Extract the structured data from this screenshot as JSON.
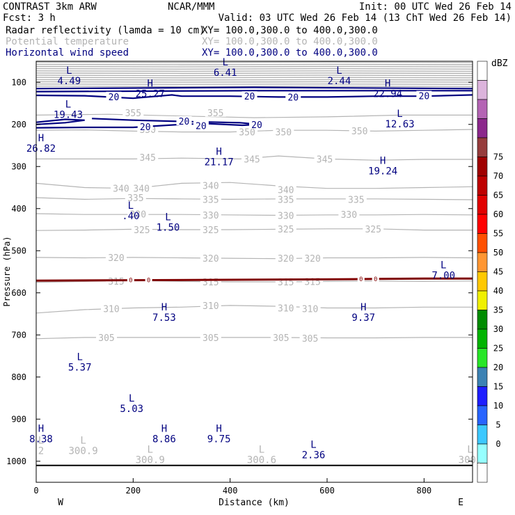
{
  "header": {
    "model": "CONTRAST  3km ARW",
    "org": "NCAR/MMM",
    "init": "Init: 00 UTC Wed 26 Feb 14",
    "fcst": "Fcst:     3 h",
    "valid": "Valid: 03 UTC Wed 26 Feb 14 (13 ChT Wed 26 Feb 14)"
  },
  "fields": [
    {
      "name": "Radar reflectivity (lamda = 10 cm)",
      "xy": "XY= 100.0,300.0 to 400.0,300.0",
      "color": "#000000"
    },
    {
      "name": "Potential temperature",
      "xy": "XY= 100.0,300.0 to 400.0,300.0",
      "color": "#b4b4b4"
    },
    {
      "name": "Horizontal wind speed",
      "xy": "XY= 100.0,300.0 to 400.0,300.0",
      "color": "#000080"
    }
  ],
  "colorbar": {
    "unit": "dBZ",
    "levels": [
      "0",
      "5",
      "10",
      "15",
      "20",
      "25",
      "30",
      "35",
      "40",
      "45",
      "50",
      "55",
      "60",
      "65",
      "70",
      "75"
    ],
    "colors": [
      "#ffffff",
      "#96ffff",
      "#3cc8ff",
      "#2864ff",
      "#1e1eff",
      "#3c82b4",
      "#28e628",
      "#00b400",
      "#008c00",
      "#f0f000",
      "#ffc800",
      "#ff9632",
      "#ff5000",
      "#ff0000",
      "#e10000",
      "#be0000",
      "#a00000",
      "#963c3c",
      "#8c288c",
      "#b464b4",
      "#dcb4dc",
      "#ffffff"
    ]
  },
  "chart_data": {
    "type": "heatmap",
    "title": "",
    "xlabel": "Distance (km)",
    "ylabel": "Pressure (hPa)",
    "xlim": [
      0,
      900
    ],
    "ylim": [
      1050,
      50
    ],
    "x_ticks": [
      0,
      200,
      400,
      600,
      800
    ],
    "y_ticks": [
      100,
      200,
      300,
      400,
      500,
      600,
      700,
      800,
      900,
      1000
    ],
    "x_end_labels": {
      "left": "W",
      "right": "E"
    },
    "theta_contours": [
      {
        "label": "355",
        "points": [
          [
            0,
            178
          ],
          [
            150,
            176
          ],
          [
            300,
            180
          ],
          [
            450,
            184
          ],
          [
            600,
            182
          ],
          [
            750,
            178
          ],
          [
            900,
            178
          ]
        ],
        "labels_at": [
          [
            200,
            172
          ],
          [
            370,
            172
          ]
        ]
      },
      {
        "label": "350",
        "points": [
          [
            0,
            214
          ],
          [
            100,
            213
          ],
          [
            200,
            216
          ],
          [
            300,
            218
          ],
          [
            400,
            218
          ],
          [
            500,
            214
          ],
          [
            600,
            214
          ],
          [
            700,
            216
          ],
          [
            800,
            214
          ],
          [
            900,
            212
          ]
        ],
        "labels_at": [
          [
            230,
            212
          ],
          [
            435,
            218
          ],
          [
            510,
            218
          ],
          [
            667,
            215
          ]
        ]
      },
      {
        "label": "345",
        "points": [
          [
            0,
            282
          ],
          [
            100,
            282
          ],
          [
            200,
            282
          ],
          [
            300,
            280
          ],
          [
            420,
            282
          ],
          [
            500,
            275
          ],
          [
            600,
            282
          ],
          [
            700,
            285
          ],
          [
            800,
            283
          ],
          [
            900,
            283
          ]
        ],
        "labels_at": [
          [
            230,
            278
          ],
          [
            445,
            282
          ],
          [
            595,
            282
          ]
        ]
      },
      {
        "label": "340",
        "points": [
          [
            0,
            340
          ],
          [
            100,
            350
          ],
          [
            200,
            352
          ],
          [
            300,
            340
          ],
          [
            400,
            338
          ],
          [
            500,
            346
          ],
          [
            600,
            352
          ],
          [
            700,
            352
          ],
          [
            800,
            350
          ],
          [
            900,
            348
          ]
        ],
        "labels_at": [
          [
            175,
            352
          ],
          [
            217,
            352
          ],
          [
            360,
            345
          ],
          [
            515,
            355
          ]
        ]
      },
      {
        "label": "335",
        "points": [
          [
            0,
            374
          ],
          [
            100,
            378
          ],
          [
            200,
            376
          ],
          [
            300,
            377
          ],
          [
            400,
            378
          ],
          [
            500,
            377
          ],
          [
            600,
            377
          ],
          [
            700,
            377
          ],
          [
            800,
            378
          ],
          [
            900,
            379
          ]
        ],
        "labels_at": [
          [
            205,
            374
          ],
          [
            360,
            378
          ],
          [
            515,
            378
          ],
          [
            660,
            378
          ]
        ]
      },
      {
        "label": "330",
        "points": [
          [
            0,
            412
          ],
          [
            100,
            414
          ],
          [
            200,
            414
          ],
          [
            300,
            414
          ],
          [
            400,
            415
          ],
          [
            500,
            416
          ],
          [
            600,
            415
          ],
          [
            700,
            415
          ],
          [
            800,
            414
          ],
          [
            900,
            415
          ]
        ],
        "labels_at": [
          [
            210,
            413
          ],
          [
            360,
            415
          ],
          [
            515,
            416
          ],
          [
            645,
            414
          ]
        ]
      },
      {
        "label": "325",
        "points": [
          [
            0,
            452
          ],
          [
            100,
            451
          ],
          [
            200,
            449
          ],
          [
            300,
            450
          ],
          [
            400,
            450
          ],
          [
            500,
            449
          ],
          [
            600,
            448
          ],
          [
            700,
            448
          ],
          [
            800,
            451
          ],
          [
            900,
            451
          ]
        ],
        "labels_at": [
          [
            218,
            450
          ],
          [
            360,
            450
          ],
          [
            515,
            448
          ],
          [
            695,
            448
          ]
        ]
      },
      {
        "label": "320",
        "points": [
          [
            0,
            516
          ],
          [
            100,
            517
          ],
          [
            200,
            516
          ],
          [
            300,
            517
          ],
          [
            400,
            518
          ],
          [
            500,
            519
          ],
          [
            600,
            517
          ],
          [
            700,
            517
          ],
          [
            800,
            516
          ],
          [
            900,
            517
          ]
        ],
        "labels_at": [
          [
            165,
            516
          ],
          [
            360,
            518
          ],
          [
            515,
            518
          ],
          [
            570,
            518
          ]
        ]
      },
      {
        "label": "315",
        "points": [
          [
            0,
            575
          ],
          [
            100,
            573
          ],
          [
            200,
            571
          ],
          [
            300,
            573
          ],
          [
            400,
            574
          ],
          [
            500,
            574
          ],
          [
            600,
            573
          ],
          [
            700,
            572
          ],
          [
            800,
            573
          ],
          [
            900,
            572
          ]
        ],
        "labels_at": [
          [
            165,
            572
          ],
          [
            360,
            574
          ],
          [
            515,
            574
          ],
          [
            570,
            573
          ]
        ]
      },
      {
        "label": "310",
        "points": [
          [
            0,
            648
          ],
          [
            100,
            640
          ],
          [
            200,
            636
          ],
          [
            300,
            634
          ],
          [
            400,
            630
          ],
          [
            500,
            632
          ],
          [
            600,
            636
          ],
          [
            700,
            636
          ],
          [
            800,
            634
          ],
          [
            900,
            634
          ]
        ],
        "labels_at": [
          [
            155,
            638
          ],
          [
            360,
            630
          ],
          [
            515,
            636
          ],
          [
            565,
            638
          ]
        ]
      },
      {
        "label": "305",
        "points": [
          [
            0,
            709
          ],
          [
            100,
            706
          ],
          [
            200,
            706
          ],
          [
            300,
            706
          ],
          [
            400,
            706
          ],
          [
            500,
            706
          ],
          [
            600,
            707
          ],
          [
            700,
            707
          ],
          [
            800,
            706
          ],
          [
            900,
            706
          ]
        ],
        "labels_at": [
          [
            145,
            706
          ],
          [
            360,
            706
          ],
          [
            505,
            706
          ],
          [
            565,
            708
          ]
        ]
      }
    ],
    "wind_speed_contours": [
      {
        "label": "20",
        "points": [
          [
            0,
            131
          ],
          [
            100,
            132
          ],
          [
            150,
            135
          ],
          [
            200,
            138
          ],
          [
            280,
            130
          ],
          [
            300,
            133
          ],
          [
            400,
            133
          ],
          [
            500,
            135
          ],
          [
            600,
            135
          ],
          [
            700,
            133
          ],
          [
            800,
            133
          ],
          [
            900,
            130
          ]
        ],
        "labels_at": [
          [
            160,
            134
          ],
          [
            440,
            133
          ],
          [
            530,
            135
          ],
          [
            800,
            132
          ]
        ]
      },
      {
        "label": "20",
        "points": [
          [
            115,
            186
          ],
          [
            200,
            190
          ],
          [
            300,
            193
          ],
          [
            420,
            196
          ],
          [
            460,
            200
          ],
          [
            425,
            202
          ],
          [
            350,
            198
          ],
          [
            300,
            200
          ],
          [
            200,
            207
          ],
          [
            100,
            207
          ],
          [
            0,
            208
          ]
        ],
        "labels_at": [
          [
            305,
            192
          ],
          [
            455,
            200
          ],
          [
            225,
            205
          ],
          [
            340,
            203
          ]
        ]
      },
      {
        "label": "20",
        "points": [
          [
            0,
            195
          ],
          [
            60,
            188
          ],
          [
            100,
            190
          ],
          [
            60,
            196
          ],
          [
            0,
            200
          ]
        ],
        "labels_at": []
      }
    ],
    "reflectivity_zero_contour": {
      "label": "0",
      "points": [
        [
          0,
          571
        ],
        [
          200,
          570
        ],
        [
          400,
          569
        ],
        [
          600,
          568
        ],
        [
          700,
          567
        ],
        [
          800,
          566
        ],
        [
          900,
          566
        ]
      ],
      "labels_at": [
        [
          195,
          570
        ],
        [
          232,
          570
        ],
        [
          670,
          567
        ],
        [
          700,
          567
        ]
      ]
    },
    "wind_extrema": [
      {
        "type": "L",
        "x": 68,
        "p": 80,
        "value": 4.49
      },
      {
        "type": "L",
        "x": 390,
        "p": 60,
        "value": 6.41
      },
      {
        "type": "L",
        "x": 625,
        "p": 80,
        "value": 2.44
      },
      {
        "type": "H",
        "x": 235,
        "p": 110,
        "value": 25.27
      },
      {
        "type": "H",
        "x": 725,
        "p": 110,
        "value": 22.94
      },
      {
        "type": "L",
        "x": 66,
        "p": 160,
        "value": 19.43
      },
      {
        "type": "L",
        "x": 750,
        "p": 182,
        "value": 12.63
      },
      {
        "type": "H",
        "x": 10,
        "p": 240,
        "value": 26.82
      },
      {
        "type": "H",
        "x": 377,
        "p": 272,
        "value": 21.17
      },
      {
        "type": "H",
        "x": 715,
        "p": 294,
        "value": 19.24
      },
      {
        "type": "L",
        "x": 195,
        "p": 400,
        "value": 0.4
      },
      {
        "type": "L",
        "x": 272,
        "p": 428,
        "value": 1.5
      },
      {
        "type": "L",
        "x": 840,
        "p": 542,
        "value": 7.0
      },
      {
        "type": "H",
        "x": 264,
        "p": 642,
        "value": 7.53
      },
      {
        "type": "H",
        "x": 675,
        "p": 642,
        "value": 9.37
      },
      {
        "type": "L",
        "x": 90,
        "p": 760,
        "value": 5.37
      },
      {
        "type": "L",
        "x": 197,
        "p": 858,
        "value": 5.03
      },
      {
        "type": "H",
        "x": 10,
        "p": 930,
        "value": 8.38
      },
      {
        "type": "H",
        "x": 264,
        "p": 930,
        "value": 8.86
      },
      {
        "type": "H",
        "x": 377,
        "p": 930,
        "value": 9.75
      },
      {
        "type": "L",
        "x": 572,
        "p": 968,
        "value": 2.36
      }
    ],
    "theta_extrema": [
      {
        "type": "L",
        "x": 10,
        "p": 958,
        "value": "2"
      },
      {
        "type": "L",
        "x": 97,
        "p": 958,
        "value": "300.9"
      },
      {
        "type": "L",
        "x": 235,
        "p": 980,
        "value": "300.9"
      },
      {
        "type": "L",
        "x": 465,
        "p": 980,
        "value": "300.6"
      },
      {
        "type": "L",
        "x": 895,
        "p": 980,
        "value": "300."
      }
    ],
    "surface_line_p": 1010
  }
}
